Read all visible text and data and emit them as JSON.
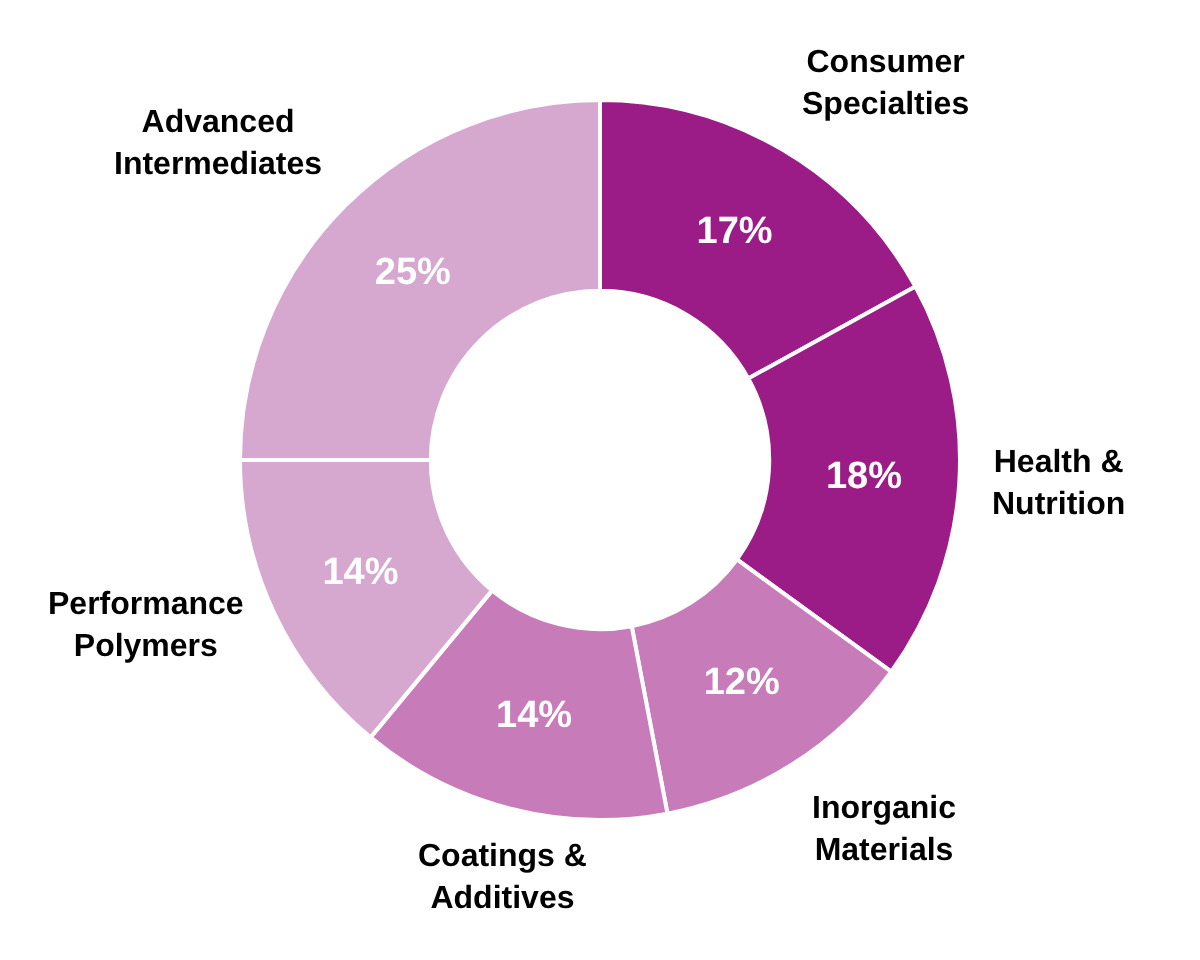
{
  "chart_data": {
    "type": "donut",
    "categories": [
      "Consumer Specialties",
      "Health & Nutrition",
      "Inorganic Materials",
      "Coatings & Additives",
      "Performance Polymers",
      "Advanced Intermediates"
    ],
    "values": [
      17,
      18,
      12,
      14,
      14,
      25
    ],
    "value_labels": [
      "17%",
      "18%",
      "12%",
      "14%",
      "14%",
      "25%"
    ],
    "colors": [
      "#9c1c87",
      "#9c1c87",
      "#c77bb9",
      "#c77bb9",
      "#d6a7cf",
      "#d6a7cf"
    ]
  }
}
